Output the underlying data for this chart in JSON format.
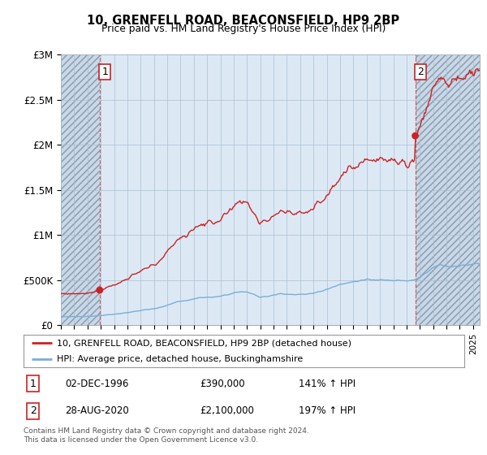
{
  "title": "10, GRENFELL ROAD, BEACONSFIELD, HP9 2BP",
  "subtitle": "Price paid vs. HM Land Registry's House Price Index (HPI)",
  "ylim": [
    0,
    3000000
  ],
  "yticks": [
    0,
    500000,
    1000000,
    1500000,
    2000000,
    2500000,
    3000000
  ],
  "ytick_labels": [
    "£0",
    "£500K",
    "£1M",
    "£1.5M",
    "£2M",
    "£2.5M",
    "£3M"
  ],
  "legend_line1": "10, GRENFELL ROAD, BEACONSFIELD, HP9 2BP (detached house)",
  "legend_line2": "HPI: Average price, detached house, Buckinghamshire",
  "line1_color": "#cc2222",
  "line2_color": "#7aafd4",
  "annotation1_date": "02-DEC-1996",
  "annotation1_price": "£390,000",
  "annotation1_hpi": "141% ↑ HPI",
  "annotation2_date": "28-AUG-2020",
  "annotation2_price": "£2,100,000",
  "annotation2_hpi": "197% ↑ HPI",
  "footer": "Contains HM Land Registry data © Crown copyright and database right 2024.\nThis data is licensed under the Open Government Licence v3.0.",
  "sale1_year": 1996.92,
  "sale1_price": 390000,
  "sale2_year": 2020.65,
  "sale2_price": 2100000,
  "xmin": 1994.0,
  "xmax": 2025.5,
  "plot_bg": "#dce9f5",
  "hatch_bg": "#c8d8e8",
  "grid_color": "#aabfd0",
  "spine_color": "#aaaaaa"
}
